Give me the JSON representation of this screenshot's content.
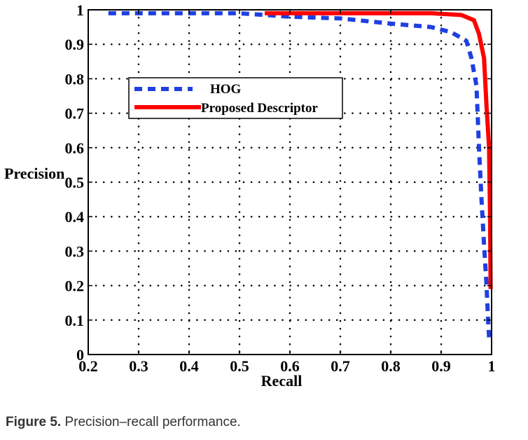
{
  "chart_data": {
    "type": "line",
    "xlabel": "Recall",
    "ylabel": "Precision",
    "xlim": [
      0.2,
      1.0
    ],
    "ylim": [
      0,
      1
    ],
    "x_ticks": [
      "0.2",
      "0.3",
      "0.4",
      "0.5",
      "0.6",
      "0.7",
      "0.8",
      "0.9",
      "1"
    ],
    "y_ticks": [
      "0",
      "0.1",
      "0.2",
      "0.3",
      "0.4",
      "0.5",
      "0.6",
      "0.7",
      "0.8",
      "0.9",
      "1"
    ],
    "grid": true,
    "legend": "top-left",
    "series": [
      {
        "name": "HOG",
        "color": "#1f3fe0",
        "style": "dashed",
        "points": [
          [
            0.24,
            0.99
          ],
          [
            0.3,
            0.99
          ],
          [
            0.4,
            0.99
          ],
          [
            0.5,
            0.99
          ],
          [
            0.6,
            0.98
          ],
          [
            0.7,
            0.975
          ],
          [
            0.8,
            0.96
          ],
          [
            0.88,
            0.95
          ],
          [
            0.92,
            0.935
          ],
          [
            0.95,
            0.91
          ],
          [
            0.96,
            0.86
          ],
          [
            0.97,
            0.78
          ],
          [
            0.975,
            0.6
          ],
          [
            0.98,
            0.45
          ],
          [
            0.985,
            0.32
          ],
          [
            0.99,
            0.2
          ],
          [
            0.993,
            0.1
          ],
          [
            0.995,
            0.05
          ]
        ]
      },
      {
        "name": "Proposed Descriptor",
        "color": "#ff0000",
        "style": "solid",
        "points": [
          [
            0.55,
            0.99
          ],
          [
            0.7,
            0.99
          ],
          [
            0.8,
            0.99
          ],
          [
            0.88,
            0.99
          ],
          [
            0.94,
            0.985
          ],
          [
            0.965,
            0.97
          ],
          [
            0.975,
            0.93
          ],
          [
            0.985,
            0.86
          ],
          [
            0.99,
            0.72
          ],
          [
            0.995,
            0.6
          ],
          [
            0.997,
            0.4
          ],
          [
            0.998,
            0.19
          ]
        ]
      }
    ]
  },
  "caption": {
    "label": "Figure 5.",
    "text": " Precision–recall performance."
  }
}
